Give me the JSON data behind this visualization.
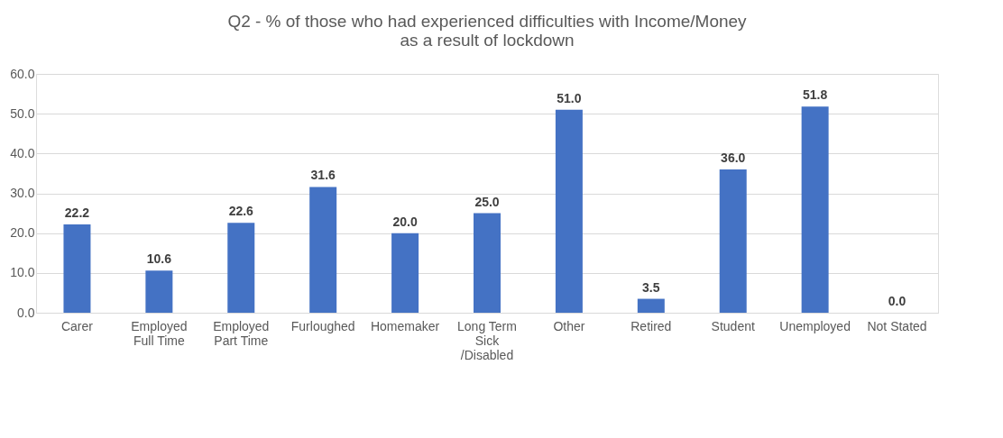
{
  "chart_data": {
    "type": "bar",
    "title": "Q2 - % of those who had experienced difficulties with Income/Money\nas a result of lockdown",
    "categories": [
      "Carer",
      "Employed Full Time",
      "Employed Part Time",
      "Furloughed",
      "Homemaker",
      "Long Term Sick /Disabled",
      "Other",
      "Retired",
      "Student",
      "Unemployed",
      "Not Stated"
    ],
    "values": [
      22.2,
      10.6,
      22.6,
      31.6,
      20.0,
      25.0,
      51.0,
      3.5,
      36.0,
      51.8,
      0.0
    ],
    "color": "#4472c4",
    "ylim": [
      0,
      60
    ],
    "yticks": [
      {
        "value": 0,
        "label": "0.0"
      },
      {
        "value": 10,
        "label": "10.0"
      },
      {
        "value": 20,
        "label": "20.0"
      },
      {
        "value": 30,
        "label": "30.0"
      },
      {
        "value": 40,
        "label": "40.0"
      },
      {
        "value": 50,
        "label": "50.0"
      },
      {
        "value": 60,
        "label": "60.0"
      }
    ],
    "value_labels": [
      "22.2",
      "10.6",
      "22.6",
      "31.6",
      "20.0",
      "25.0",
      "51.0",
      "3.5",
      "36.0",
      "51.8",
      "0.0"
    ],
    "grid": "y"
  }
}
